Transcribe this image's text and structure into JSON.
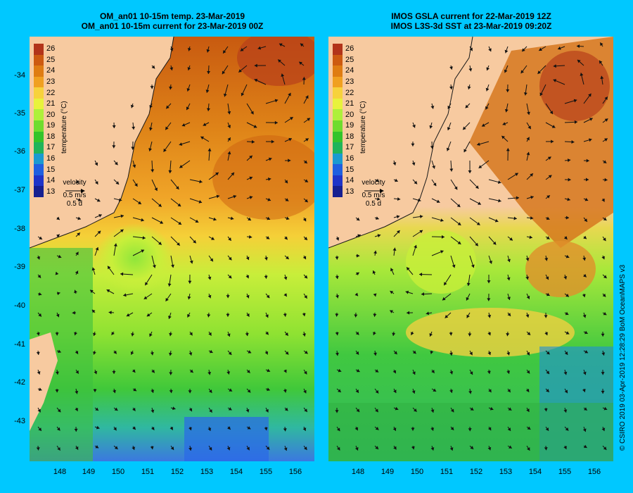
{
  "panels": {
    "left": {
      "title_line1": "OM_an01 10-15m temp. 23-Mar-2019",
      "title_line2": "OM_an01 10-15m current for 23-Mar-2019 00Z"
    },
    "right": {
      "title_line1": "IMOS GSLA current for 22-Mar-2019 12Z",
      "title_line2": "IMOS L3S-3d SST at 23-Mar-2019 09:20Z"
    }
  },
  "colorbar": {
    "label": "temperature (°C)",
    "ticks": [
      "26",
      "25",
      "24",
      "23",
      "22",
      "21",
      "20",
      "19",
      "18",
      "17",
      "16",
      "15",
      "14",
      "13"
    ],
    "colors": [
      "#b2341a",
      "#cd5a10",
      "#df7c12",
      "#f0a020",
      "#f7d23c",
      "#e8f23c",
      "#aef03a",
      "#6fdc2e",
      "#34c42a",
      "#20b45a",
      "#1a9ad0",
      "#1f5fe0",
      "#1f34c8",
      "#172090"
    ]
  },
  "velocity": {
    "label": "velocity",
    "speed": "0.5 m/s",
    "duration": "0.5 d"
  },
  "axes": {
    "latitude_ticks": [
      "-34",
      "-35",
      "-36",
      "-37",
      "-38",
      "-39",
      "-40",
      "-41",
      "-42",
      "-43"
    ],
    "longitude_ticks": [
      "148",
      "149",
      "150",
      "151",
      "152",
      "153",
      "154",
      "155",
      "156"
    ]
  },
  "credit": "© CSIRO 2019   03-Apr-2019 12:28:29 BoM OceanMAPS v3"
}
